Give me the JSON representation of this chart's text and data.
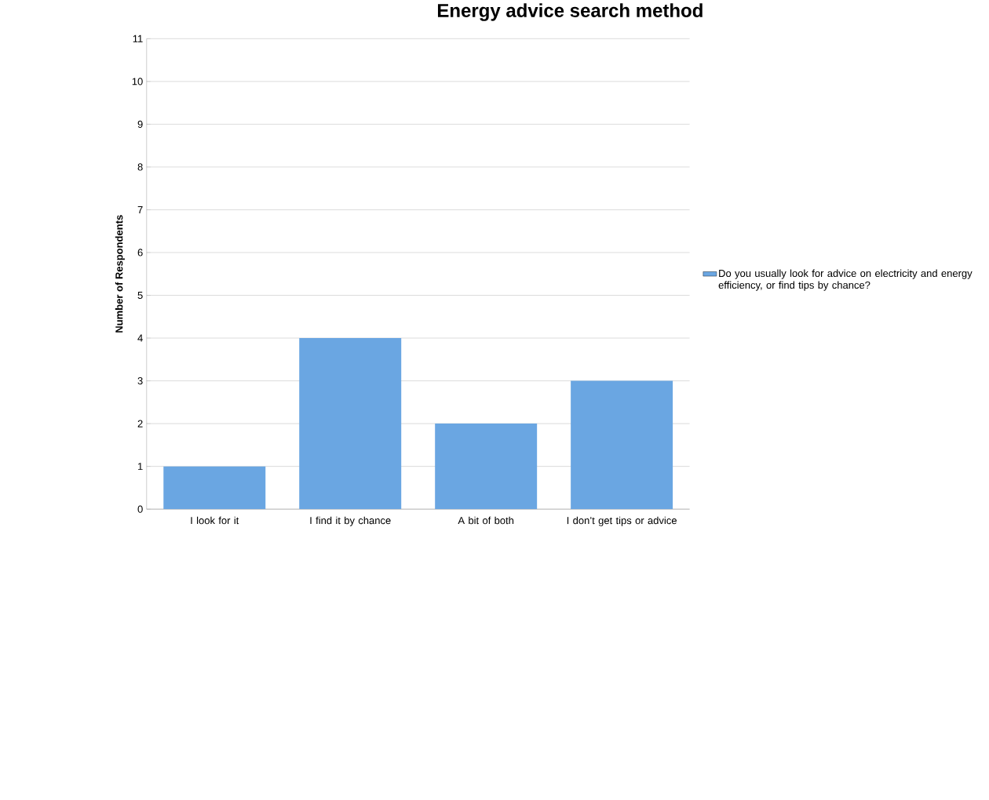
{
  "chart_data": {
    "type": "bar",
    "title": "Energy advice search method",
    "ylabel": "Number of Respondents",
    "categories": [
      "I look for it",
      "I find it by chance",
      "A bit of both",
      "I don’t get tips or advice"
    ],
    "series": [
      {
        "name": "Do you usually look for advice on electricity and energy efficiency, or find tips by chance?",
        "color": "#6aa6e2",
        "values": [
          1,
          4,
          2,
          3
        ]
      }
    ],
    "ylim": [
      0,
      11
    ],
    "yticks": [
      0,
      1,
      2,
      3,
      4,
      5,
      6,
      7,
      8,
      9,
      10,
      11
    ],
    "grid": "y",
    "legend": "right"
  }
}
